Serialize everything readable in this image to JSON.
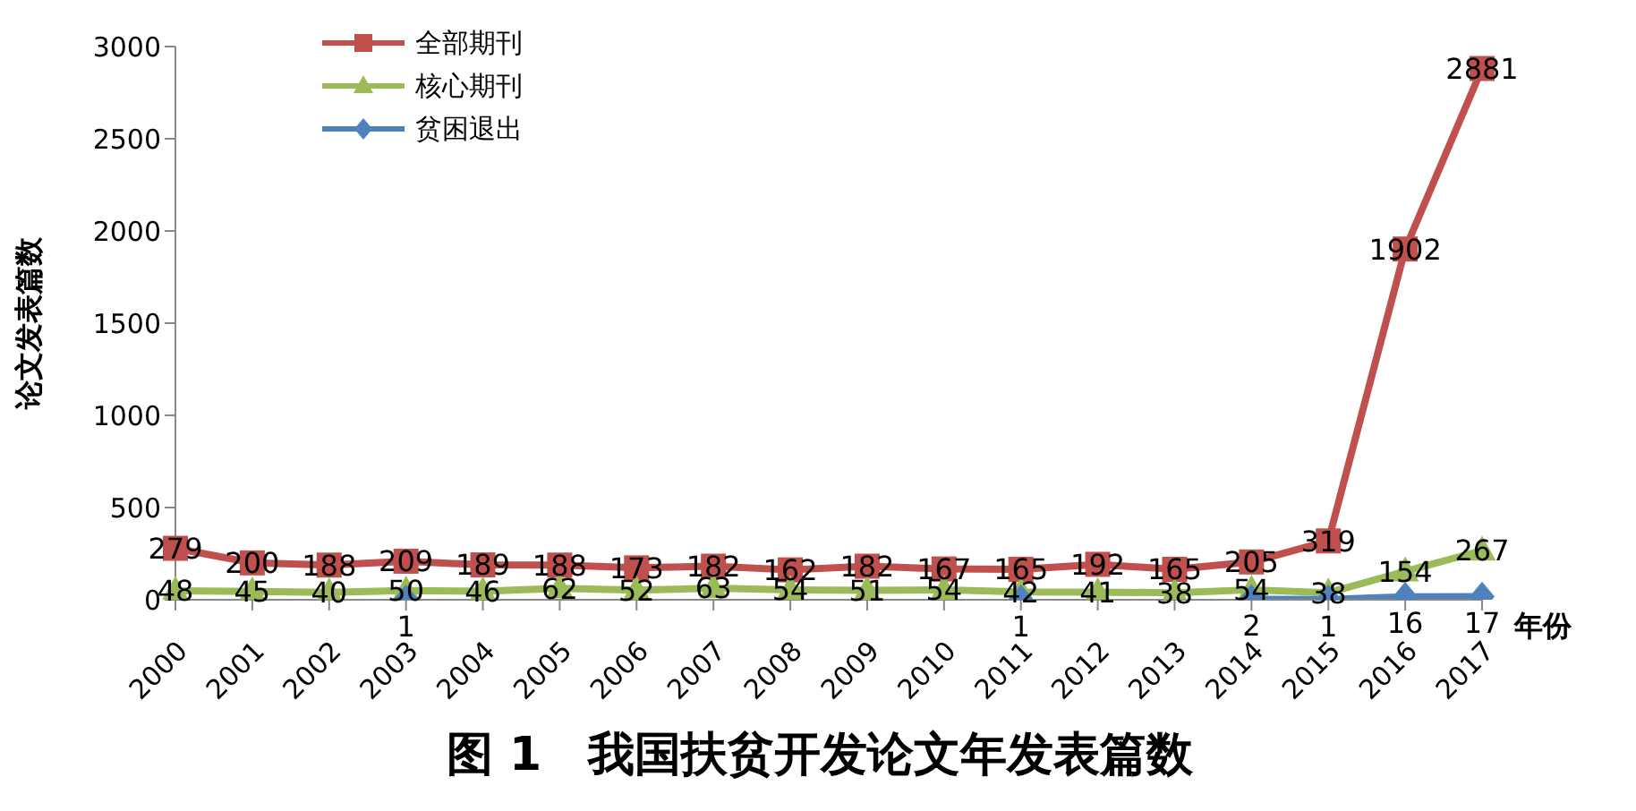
{
  "chart_data": {
    "type": "line",
    "title": "图 1　我国扶贫开发论文年发表篇数",
    "xlabel": "年份",
    "ylabel": "论文发表篇数",
    "categories": [
      "2000",
      "2001",
      "2002",
      "2003",
      "2004",
      "2005",
      "2006",
      "2007",
      "2008",
      "2009",
      "2010",
      "2011",
      "2012",
      "2013",
      "2014",
      "2015",
      "2016",
      "2017"
    ],
    "series": [
      {
        "name": "全部期刊",
        "color": "#c0504d",
        "marker": "square",
        "values": [
          279,
          200,
          188,
          209,
          189,
          188,
          173,
          182,
          162,
          182,
          167,
          165,
          192,
          165,
          205,
          319,
          1902,
          2881
        ]
      },
      {
        "name": "核心期刊",
        "color": "#9bbb59",
        "marker": "triangle",
        "values": [
          48,
          45,
          40,
          50,
          46,
          62,
          52,
          63,
          54,
          51,
          54,
          42,
          41,
          38,
          54,
          38,
          154,
          267
        ]
      },
      {
        "name": "贫困退出",
        "color": "#4f81bd",
        "marker": "diamond",
        "values": [
          null,
          null,
          null,
          1,
          null,
          null,
          null,
          null,
          null,
          null,
          null,
          1,
          null,
          null,
          2,
          1,
          16,
          17
        ]
      }
    ],
    "ylim": [
      0,
      3000
    ],
    "yticks": [
      0,
      500,
      1000,
      1500,
      2000,
      2500,
      3000
    ],
    "grid": false,
    "legend": "top left",
    "data_labels": true
  }
}
